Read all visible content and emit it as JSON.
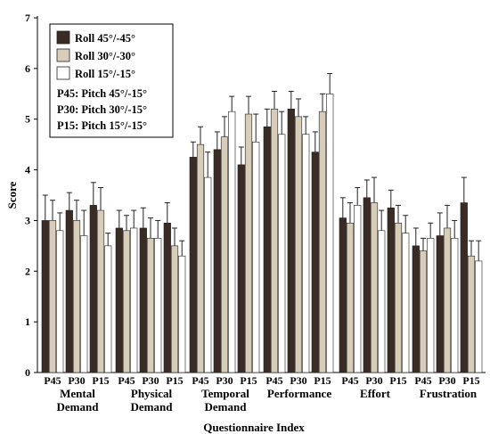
{
  "chart_data": {
    "type": "bar",
    "ylabel": "Score",
    "xlabel": "Questionnaire Index",
    "ylim": [
      0,
      7
    ],
    "yticks": [
      "0",
      "1",
      "2",
      "3",
      "4",
      "5",
      "6",
      "7"
    ],
    "grid": false,
    "legend_position": "top-left",
    "group_sublabels": [
      "P45",
      "P30",
      "P15"
    ],
    "groups": [
      {
        "label_lines": [
          "Mental",
          "Demand"
        ]
      },
      {
        "label_lines": [
          "Physical",
          "Demand"
        ]
      },
      {
        "label_lines": [
          "Temporal",
          "Demand"
        ]
      },
      {
        "label_lines": [
          "Performance"
        ]
      },
      {
        "label_lines": [
          "Effort"
        ]
      },
      {
        "label_lines": [
          "Frustration"
        ]
      }
    ],
    "series": [
      {
        "name": "Roll 45°/-45°",
        "color": "#3a2b24"
      },
      {
        "name": "Roll 30°/-30°",
        "color": "#d8cdb8"
      },
      {
        "name": "Roll 15°/-15°",
        "color": "#ffffff"
      }
    ],
    "legend_notes": [
      "P45: Pitch 45°/-15°",
      "P30: Pitch 30°/-15°",
      "P15: Pitch 15°/-15°"
    ],
    "values": [
      [
        [
          3.0,
          3.0,
          2.8
        ],
        [
          3.2,
          3.0,
          2.7
        ],
        [
          3.3,
          3.2,
          2.5
        ]
      ],
      [
        [
          2.85,
          2.8,
          2.85
        ],
        [
          2.85,
          2.65,
          2.65
        ],
        [
          2.95,
          2.5,
          2.3
        ]
      ],
      [
        [
          4.25,
          4.5,
          3.85
        ],
        [
          4.4,
          4.65,
          5.15
        ],
        [
          4.1,
          5.1,
          4.55
        ]
      ],
      [
        [
          4.85,
          5.2,
          4.7
        ],
        [
          5.2,
          5.05,
          4.7
        ],
        [
          4.35,
          5.15,
          5.5
        ]
      ],
      [
        [
          3.05,
          2.95,
          3.3
        ],
        [
          3.45,
          3.35,
          2.8
        ],
        [
          3.25,
          2.95,
          2.75
        ]
      ],
      [
        [
          2.5,
          2.4,
          2.65
        ],
        [
          2.7,
          2.85,
          2.65
        ],
        [
          3.35,
          2.3,
          2.2
        ]
      ]
    ],
    "errors": [
      [
        [
          0.5,
          0.4,
          0.35
        ],
        [
          0.35,
          0.4,
          0.5
        ],
        [
          0.45,
          0.45,
          0.25
        ]
      ],
      [
        [
          0.35,
          0.3,
          0.35
        ],
        [
          0.4,
          0.4,
          0.35
        ],
        [
          0.4,
          0.35,
          0.3
        ]
      ],
      [
        [
          0.3,
          0.35,
          0.5
        ],
        [
          0.35,
          0.4,
          0.3
        ],
        [
          0.35,
          0.35,
          0.55
        ]
      ],
      [
        [
          0.35,
          0.35,
          0.45
        ],
        [
          0.35,
          0.35,
          0.35
        ],
        [
          0.4,
          0.35,
          0.4
        ]
      ],
      [
        [
          0.4,
          0.4,
          0.35
        ],
        [
          0.35,
          0.5,
          0.4
        ],
        [
          0.35,
          0.35,
          0.35
        ]
      ],
      [
        [
          0.35,
          0.25,
          0.3
        ],
        [
          0.45,
          0.45,
          0.35
        ],
        [
          0.5,
          0.3,
          0.4
        ]
      ]
    ]
  }
}
